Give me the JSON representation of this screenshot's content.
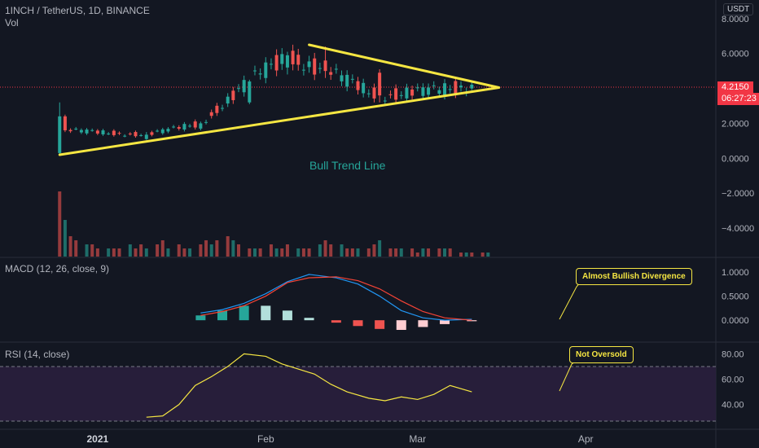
{
  "header": {
    "symbol_line": "1INCH / TetherUS, 1D, BINANCE",
    "vol_label": "Vol",
    "currency": "USDT"
  },
  "last_price": {
    "value": "4.2150",
    "countdown": "06:27:23",
    "color": "#f23645"
  },
  "annotations": {
    "trend_label": "Bull Trend Line",
    "macd_callout": "Almost Bullish Divergence",
    "rsi_callout": "Not Oversold"
  },
  "colors": {
    "background": "#131722",
    "up": "#26a69a",
    "down": "#ef5350",
    "trendline": "#f5e642",
    "macd_line": "#2196f3",
    "signal_line": "#f44336",
    "rsi_line": "#f5e642",
    "rsi_band": "#2a1f3d"
  },
  "chart_data": [
    {
      "type": "candlestick",
      "title": "1INCH / TetherUS, 1D, BINANCE",
      "y_ticks": [
        "8.0000",
        "6.0000",
        "4.0000",
        "2.0000",
        "0.0000",
        "−2.0000",
        "−4.0000"
      ],
      "ylim": [
        -5.4,
        8.6
      ],
      "x_ticks": [
        "2021",
        "Feb",
        "Mar",
        "Apr"
      ],
      "x_range": [
        "2020-12-14",
        "2021-04-25"
      ],
      "ohlc_sample": [
        {
          "date": "2020-12-25",
          "open": 0.3,
          "high": 3.2,
          "low": 0.25,
          "close": 2.4
        },
        {
          "date": "2020-12-26",
          "open": 2.4,
          "high": 2.5,
          "low": 1.5,
          "close": 1.6
        },
        {
          "date": "2021-01-10",
          "open": 1.1,
          "high": 1.5,
          "low": 1.05,
          "close": 1.35
        },
        {
          "date": "2021-01-20",
          "open": 1.7,
          "high": 2.1,
          "low": 1.6,
          "close": 2.0
        },
        {
          "date": "2021-01-29",
          "open": 3.2,
          "high": 4.5,
          "low": 3.1,
          "close": 4.4
        },
        {
          "date": "2021-02-05",
          "open": 5.2,
          "high": 6.1,
          "low": 4.8,
          "close": 5.9
        },
        {
          "date": "2021-02-12",
          "open": 5.6,
          "high": 6.4,
          "low": 4.6,
          "close": 5.0
        },
        {
          "date": "2021-02-22",
          "open": 4.9,
          "high": 5.1,
          "low": 3.2,
          "close": 3.6
        },
        {
          "date": "2021-03-05",
          "open": 3.7,
          "high": 4.1,
          "low": 3.5,
          "close": 3.9
        },
        {
          "date": "2021-03-11",
          "open": 4.0,
          "high": 4.4,
          "low": 3.9,
          "close": 4.215
        }
      ],
      "trendlines": [
        {
          "name": "support",
          "from": {
            "date": "2020-12-25",
            "price": 0.2
          },
          "to": {
            "date": "2021-03-16",
            "price": 4.05
          }
        },
        {
          "name": "resistance",
          "from": {
            "date": "2021-02-09",
            "price": 6.5
          },
          "to": {
            "date": "2021-03-16",
            "price": 4.05
          }
        }
      ]
    },
    {
      "type": "bar",
      "title": "Vol",
      "series": [
        {
          "values": [
            16,
            9,
            5,
            4,
            3,
            3,
            2,
            2,
            2,
            2,
            3,
            2,
            3,
            2,
            3,
            4,
            2,
            3,
            2,
            2,
            3,
            4,
            3,
            4,
            5,
            4,
            3,
            2,
            2,
            2,
            3,
            2,
            2,
            3,
            2,
            2,
            2,
            3,
            4,
            3,
            3,
            2,
            2,
            2,
            2,
            3,
            4,
            2,
            2,
            2,
            2,
            1,
            2,
            2,
            2,
            2,
            2,
            1,
            1,
            1,
            1,
            1
          ]
        }
      ]
    },
    {
      "type": "line",
      "title": "MACD (12, 26, close, 9)",
      "y_ticks": [
        "1.0000",
        "0.5000",
        "0.0000"
      ],
      "ylim": [
        -0.2,
        1.1
      ],
      "series": [
        {
          "values": [
            0.15,
            0.22,
            0.35,
            0.55,
            0.8,
            0.95,
            0.88,
            0.75,
            0.5,
            0.2,
            0.05,
            0.0,
            0.02
          ]
        },
        {
          "values": [
            0.1,
            0.18,
            0.3,
            0.5,
            0.78,
            0.88,
            0.9,
            0.82,
            0.65,
            0.4,
            0.18,
            0.05,
            0.0
          ]
        }
      ],
      "histogram_sample": [
        0.1,
        0.2,
        0.3,
        0.3,
        0.2,
        0.05,
        -0.05,
        -0.12,
        -0.18,
        -0.2,
        -0.14,
        -0.08,
        -0.02
      ]
    },
    {
      "type": "line",
      "title": "RSI (14, close)",
      "y_ticks": [
        "80.00",
        "60.00",
        "40.00"
      ],
      "ylim": [
        25,
        86
      ],
      "bands": [
        30,
        70
      ],
      "series": [
        {
          "values": [
            30,
            31,
            40,
            55,
            62,
            70,
            80,
            78,
            72,
            68,
            64,
            56,
            50,
            45,
            43,
            46,
            44,
            48,
            55,
            50
          ]
        }
      ]
    }
  ]
}
